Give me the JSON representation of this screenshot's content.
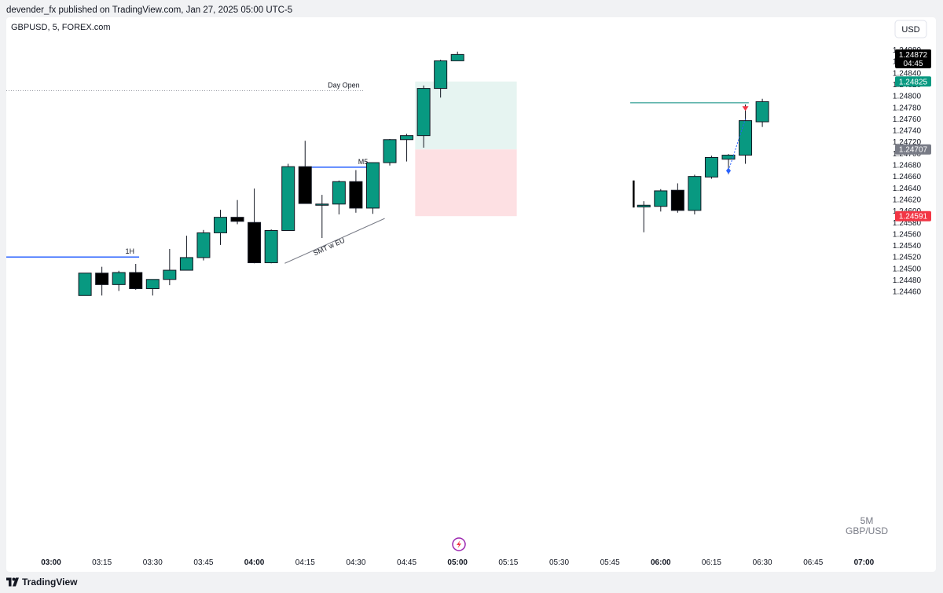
{
  "header": {
    "publish_line": "devender_fx published on TradingView.com, Jan 27, 2025 05:00 UTC-5"
  },
  "footer": {
    "brand": "TradingView"
  },
  "chart_data": {
    "type": "candlestick",
    "symbol_line": "GBPUSD, 5, FOREX.com",
    "currency_button": "USD",
    "watermark": [
      "5M",
      "GBP/USD"
    ],
    "y_ticks": [
      1.2446,
      1.2448,
      1.245,
      1.2452,
      1.2454,
      1.2456,
      1.2458,
      1.246,
      1.2462,
      1.2464,
      1.2466,
      1.2468,
      1.247,
      1.2472,
      1.2474,
      1.2476,
      1.2478,
      1.248,
      1.2482,
      1.2484,
      1.2486,
      1.2488
    ],
    "x_ticks": [
      {
        "label": "03:00",
        "t": 0,
        "bold": true
      },
      {
        "label": "03:15",
        "t": 3,
        "bold": false
      },
      {
        "label": "03:30",
        "t": 6,
        "bold": false
      },
      {
        "label": "03:45",
        "t": 9,
        "bold": false
      },
      {
        "label": "04:00",
        "t": 12,
        "bold": true
      },
      {
        "label": "04:15",
        "t": 15,
        "bold": false
      },
      {
        "label": "04:30",
        "t": 18,
        "bold": false
      },
      {
        "label": "04:45",
        "t": 21,
        "bold": false
      },
      {
        "label": "05:00",
        "t": 24,
        "bold": true
      },
      {
        "label": "05:15",
        "t": 27,
        "bold": false
      },
      {
        "label": "05:30",
        "t": 30,
        "bold": false
      },
      {
        "label": "05:45",
        "t": 33,
        "bold": false
      },
      {
        "label": "06:00",
        "t": 36,
        "bold": true
      },
      {
        "label": "06:15",
        "t": 39,
        "bold": false
      },
      {
        "label": "06:30",
        "t": 42,
        "bold": false
      },
      {
        "label": "06:45",
        "t": 45,
        "bold": false
      },
      {
        "label": "07:00",
        "t": 48,
        "bold": true
      }
    ],
    "candles": [
      {
        "t": 2,
        "o": 1.24453,
        "h": 1.24492,
        "l": 1.24453,
        "c": 1.24492
      },
      {
        "t": 3,
        "o": 1.24492,
        "h": 1.24503,
        "l": 1.24453,
        "c": 1.24472
      },
      {
        "t": 4,
        "o": 1.24472,
        "h": 1.24496,
        "l": 1.24461,
        "c": 1.24493
      },
      {
        "t": 5,
        "o": 1.24493,
        "h": 1.24508,
        "l": 1.24463,
        "c": 1.24465
      },
      {
        "t": 6,
        "o": 1.24465,
        "h": 1.24481,
        "l": 1.24453,
        "c": 1.24481
      },
      {
        "t": 7,
        "o": 1.24481,
        "h": 1.24534,
        "l": 1.24471,
        "c": 1.24497
      },
      {
        "t": 8,
        "o": 1.24497,
        "h": 1.24557,
        "l": 1.24497,
        "c": 1.24519
      },
      {
        "t": 9,
        "o": 1.24519,
        "h": 1.24567,
        "l": 1.24514,
        "c": 1.24562
      },
      {
        "t": 10,
        "o": 1.24562,
        "h": 1.24602,
        "l": 1.24541,
        "c": 1.24589
      },
      {
        "t": 11,
        "o": 1.24589,
        "h": 1.24619,
        "l": 1.24577,
        "c": 1.24582
      },
      {
        "t": 12,
        "o": 1.2458,
        "h": 1.24639,
        "l": 1.24509,
        "c": 1.2451
      },
      {
        "t": 13,
        "o": 1.2451,
        "h": 1.24568,
        "l": 1.24509,
        "c": 1.24566
      },
      {
        "t": 14,
        "o": 1.24566,
        "h": 1.24682,
        "l": 1.24566,
        "c": 1.24677
      },
      {
        "t": 15,
        "o": 1.24677,
        "h": 1.24722,
        "l": 1.24613,
        "c": 1.24613
      },
      {
        "t": 16,
        "o": 1.24612,
        "h": 1.24628,
        "l": 1.24553,
        "c": 1.24612
      },
      {
        "t": 17,
        "o": 1.24612,
        "h": 1.24653,
        "l": 1.24594,
        "c": 1.24651
      },
      {
        "t": 18,
        "o": 1.24651,
        "h": 1.24671,
        "l": 1.24597,
        "c": 1.24605
      },
      {
        "t": 19,
        "o": 1.24605,
        "h": 1.24684,
        "l": 1.24595,
        "c": 1.24684
      },
      {
        "t": 20,
        "o": 1.24684,
        "h": 1.24725,
        "l": 1.24679,
        "c": 1.24724
      },
      {
        "t": 21,
        "o": 1.24724,
        "h": 1.24734,
        "l": 1.24686,
        "c": 1.24731
      },
      {
        "t": 22,
        "o": 1.24731,
        "h": 1.24818,
        "l": 1.2471,
        "c": 1.24813
      },
      {
        "t": 23,
        "o": 1.24813,
        "h": 1.24863,
        "l": 1.24797,
        "c": 1.24861
      },
      {
        "t": 24,
        "o": 1.24861,
        "h": 1.24877,
        "l": 1.24862,
        "c": 1.24872
      },
      {
        "t": 35,
        "o": 1.24607,
        "h": 1.24617,
        "l": 1.24563,
        "c": 1.2461
      },
      {
        "t": 36,
        "o": 1.24608,
        "h": 1.24638,
        "l": 1.24599,
        "c": 1.24635
      },
      {
        "t": 37,
        "o": 1.24636,
        "h": 1.24648,
        "l": 1.24597,
        "c": 1.24601
      },
      {
        "t": 38,
        "o": 1.24601,
        "h": 1.24663,
        "l": 1.24594,
        "c": 1.2466
      },
      {
        "t": 39,
        "o": 1.24659,
        "h": 1.24696,
        "l": 1.24656,
        "c": 1.24693
      },
      {
        "t": 40,
        "o": 1.2469,
        "h": 1.24699,
        "l": 1.24664,
        "c": 1.24697
      },
      {
        "t": 41,
        "o": 1.24697,
        "h": 1.24785,
        "l": 1.24682,
        "c": 1.24757
      },
      {
        "t": 42,
        "o": 1.24755,
        "h": 1.24795,
        "l": 1.24746,
        "c": 1.2479
      }
    ],
    "stray_wick": {
      "t": 34.4,
      "high": 1.24653,
      "low": 1.24606
    },
    "price_labels": [
      {
        "price": 1.24872,
        "text": "1.24872",
        "sub": "04:45",
        "bg": "#000000",
        "fg": "#ffffff"
      },
      {
        "price": 1.24825,
        "text": "1.24825",
        "bg": "#089981",
        "fg": "#ffffff"
      },
      {
        "price": 1.24707,
        "text": "1.24707",
        "bg": "#787b86",
        "fg": "#ffffff"
      },
      {
        "price": 1.24591,
        "text": "1.24591",
        "bg": "#f23645",
        "fg": "#ffffff"
      }
    ],
    "annotations": {
      "day_open": {
        "label": "Day Open",
        "price": 1.24809,
        "t_end": 18.5
      },
      "h1_level": {
        "label": "1H",
        "price": 1.2452,
        "t_end": 5.2
      },
      "m5_level": {
        "label": "M5",
        "price": 1.24676,
        "t_start": 15.2,
        "t_end": 18.9
      },
      "smt_line": {
        "label": "SMT w EU",
        "t1": 13.8,
        "p1": 1.24509,
        "t2": 19.7,
        "p2": 1.24587
      },
      "position": {
        "t_start": 21.5,
        "t_end": 27.5,
        "entry": 1.24707,
        "target": 1.24825,
        "stop": 1.24591
      },
      "level_line": {
        "price": 1.24788,
        "t_start": 34.2,
        "t_end": 41.2
      },
      "trade_line": {
        "t1": 40,
        "p1": 1.2467,
        "t2": 41,
        "p2": 1.2476
      }
    },
    "colors": {
      "up": "#089981",
      "down": "#000000",
      "target_zone": "#e6f4f1",
      "stop_zone": "#fde0e3",
      "level_blue": "#2962ff",
      "level_teal": "#00897b"
    }
  }
}
